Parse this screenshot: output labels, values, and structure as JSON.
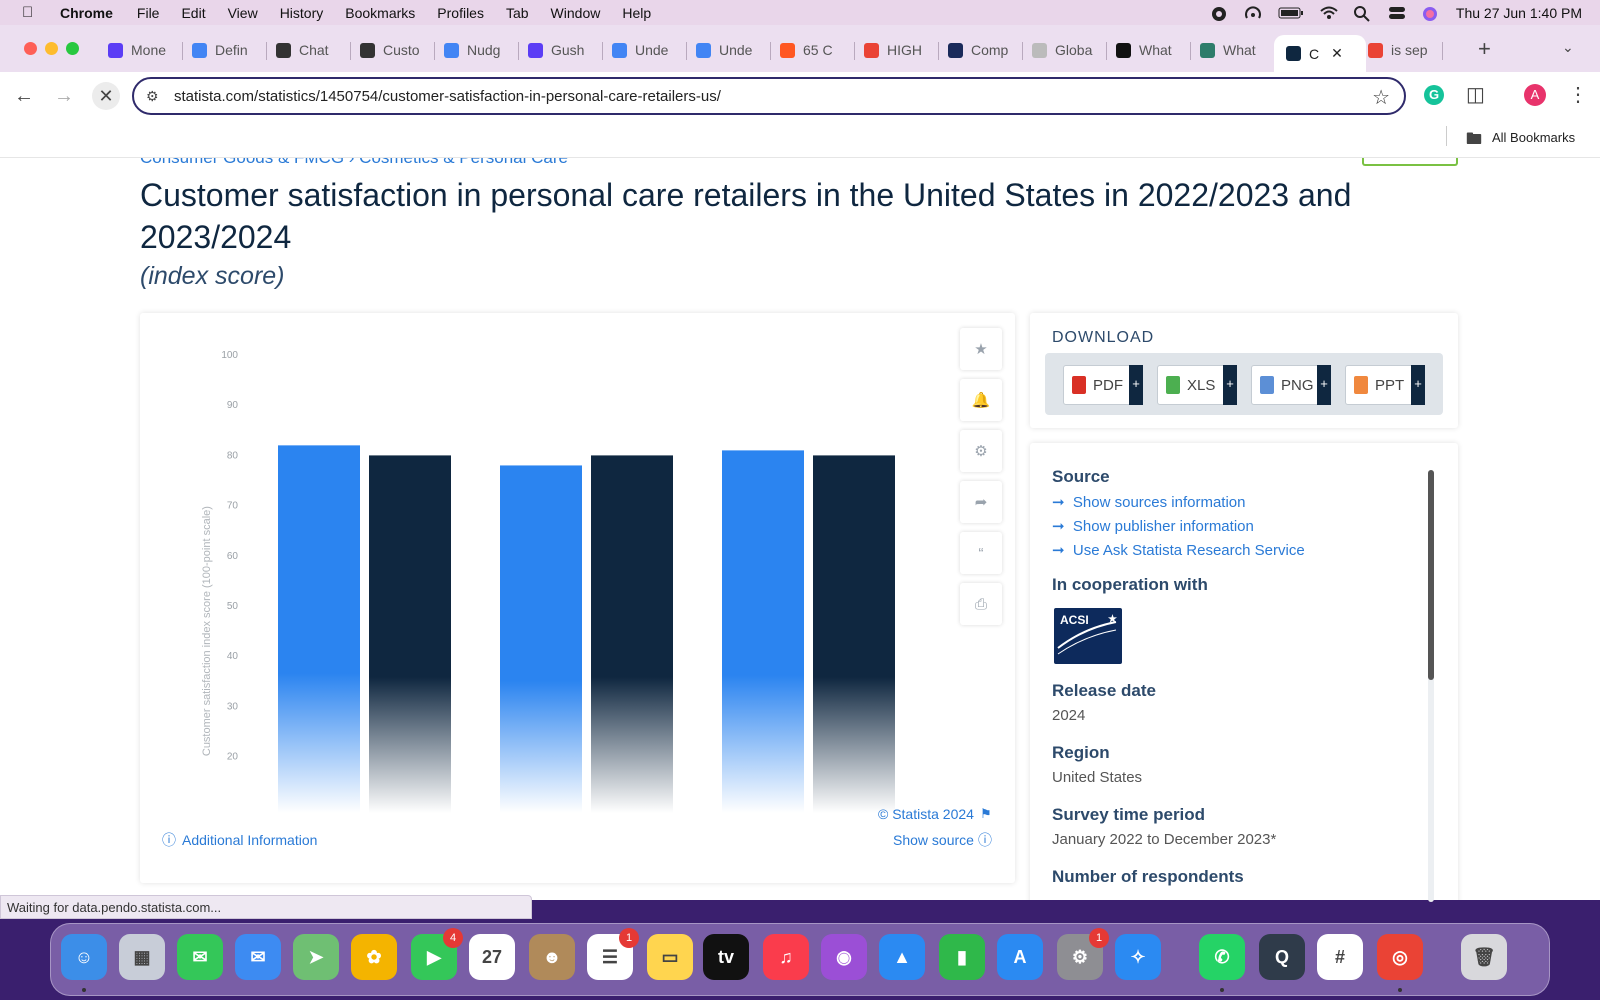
{
  "menubar": {
    "app": "Chrome",
    "items": [
      "File",
      "Edit",
      "View",
      "History",
      "Bookmarks",
      "Profiles",
      "Tab",
      "Window",
      "Help"
    ],
    "datetime": "Thu 27 Jun  1:40 PM"
  },
  "tabs": [
    {
      "label": "Mone",
      "color": "#5b3df5"
    },
    {
      "label": "Defin",
      "color": "#4285f4"
    },
    {
      "label": "Chat",
      "color": "#333333"
    },
    {
      "label": "Custo",
      "color": "#333333"
    },
    {
      "label": "Nudg",
      "color": "#4285f4"
    },
    {
      "label": "Gush",
      "color": "#5b3df5"
    },
    {
      "label": "Unde",
      "color": "#4285f4"
    },
    {
      "label": "Unde",
      "color": "#4285f4"
    },
    {
      "label": "65 C",
      "color": "#ff5722"
    },
    {
      "label": "HIGH",
      "color": "#ea4335"
    },
    {
      "label": "Comp",
      "color": "#1a2a5a"
    },
    {
      "label": "Globa",
      "color": "#bbbbbb"
    },
    {
      "label": "What",
      "color": "#111111"
    },
    {
      "label": "What",
      "color": "#2e7d6b"
    },
    {
      "label": "C",
      "color": "#0f2740"
    },
    {
      "label": "is sep",
      "color": "#ea4335"
    }
  ],
  "toolbar": {
    "url": "statista.com/statistics/1450754/customer-satisfaction-in-personal-care-retailers-us/",
    "all_bookmarks": "All Bookmarks",
    "profile_initial": "A"
  },
  "page": {
    "breadcrumb": "Consumer Goods & FMCG  ›  Cosmetics & Personal Care",
    "title": "Customer satisfaction in personal care retailers in the United States in 2022/2023 and 2023/2024",
    "subtitle": "(index score)",
    "additional_info": "Additional Information",
    "copyright": "© Statista 2024",
    "show_source": "Show source"
  },
  "chart_data": {
    "type": "bar",
    "ylabel": "Customer satisfaction index score (100-point scale)",
    "ylim": [
      20,
      100
    ],
    "yticks": [
      20,
      30,
      40,
      50,
      60,
      70,
      80,
      90,
      100
    ],
    "categories": [
      "",
      "",
      ""
    ],
    "series": [
      {
        "values": [
          82,
          78,
          81
        ],
        "color": "#2b84f0"
      },
      {
        "values": [
          80,
          80,
          80
        ],
        "color": "#0f2740"
      }
    ],
    "grid": false
  },
  "download": {
    "header": "DOWNLOAD",
    "buttons": [
      {
        "label": "PDF",
        "color": "#d93025"
      },
      {
        "label": "XLS",
        "color": "#4caf50"
      },
      {
        "label": "PNG",
        "color": "#5c8fd6"
      },
      {
        "label": "PPT",
        "color": "#f0883e"
      }
    ]
  },
  "info": {
    "source_label": "Source",
    "links": [
      "Show sources information",
      "Show publisher information",
      "Use Ask Statista Research Service"
    ],
    "cooperation_label": "In cooperation with",
    "logo_text": "ACSI",
    "release_label": "Release date",
    "release_value": "2024",
    "region_label": "Region",
    "region_value": "United States",
    "survey_label": "Survey time period",
    "survey_value": "January 2022 to December 2023*",
    "respondents_label": "Number of respondents"
  },
  "status_text": "Waiting for data.pendo.statista.com...",
  "dock": [
    {
      "name": "finder",
      "color": "#3c8ee8",
      "glyph": "☺"
    },
    {
      "name": "launchpad",
      "color": "#c8cdd8",
      "glyph": "▦"
    },
    {
      "name": "messages",
      "color": "#34c759",
      "glyph": "✉"
    },
    {
      "name": "mail",
      "color": "#3d8bf2",
      "glyph": "✉"
    },
    {
      "name": "maps",
      "color": "#6fbf73",
      "glyph": "➤"
    },
    {
      "name": "photos",
      "color": "#f4b400",
      "glyph": "✿"
    },
    {
      "name": "facetime",
      "color": "#34c759",
      "glyph": "▶",
      "badge": "4"
    },
    {
      "name": "calendar",
      "color": "#ffffff",
      "glyph": "27"
    },
    {
      "name": "contacts",
      "color": "#b08a5a",
      "glyph": "☻"
    },
    {
      "name": "reminders",
      "color": "#ffffff",
      "glyph": "☰",
      "badge": "1"
    },
    {
      "name": "notes",
      "color": "#ffd54f",
      "glyph": "▭"
    },
    {
      "name": "apple-tv",
      "color": "#111111",
      "glyph": "tv"
    },
    {
      "name": "music",
      "color": "#fa3c4c",
      "glyph": "♫"
    },
    {
      "name": "podcasts",
      "color": "#9b4fd6",
      "glyph": "◉"
    },
    {
      "name": "keynote",
      "color": "#2b8af2",
      "glyph": "▲"
    },
    {
      "name": "numbers",
      "color": "#2fb84a",
      "glyph": "▮"
    },
    {
      "name": "app-store",
      "color": "#2b8af2",
      "glyph": "A"
    },
    {
      "name": "system-settings",
      "color": "#8e8e93",
      "glyph": "⚙",
      "badge": "1"
    },
    {
      "name": "safari",
      "color": "#2b8af2",
      "glyph": "✧"
    },
    {
      "name": "whatsapp",
      "color": "#25d366",
      "glyph": "✆"
    },
    {
      "name": "quicktime",
      "color": "#2f3b4a",
      "glyph": "Q"
    },
    {
      "name": "slack",
      "color": "#ffffff",
      "glyph": "#"
    },
    {
      "name": "chrome",
      "color": "#ea4335",
      "glyph": "◎"
    },
    {
      "name": "trash",
      "color": "#d8d8dc",
      "glyph": "🗑"
    }
  ]
}
